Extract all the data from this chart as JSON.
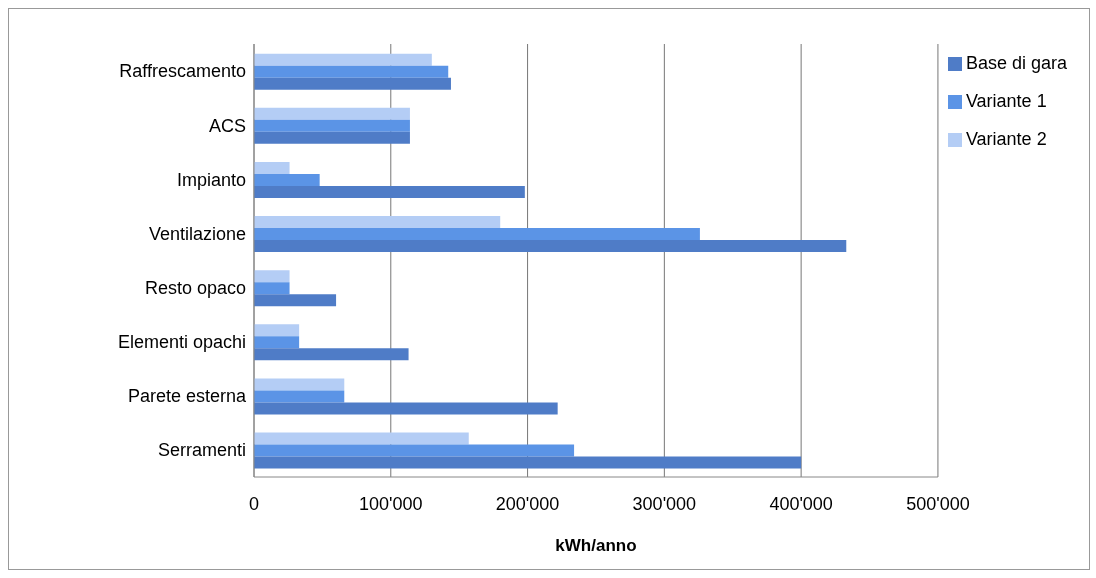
{
  "chart_data": {
    "type": "bar",
    "orientation": "horizontal",
    "xlabel": "kWh/anno",
    "categories": [
      "Raffrescamento",
      "ACS",
      "Impianto",
      "Ventilazione",
      "Resto opaco",
      "Elementi opachi",
      "Parete esterna",
      "Serramenti"
    ],
    "series": [
      {
        "name": "Variante 2",
        "color": "#b4cdf5",
        "values": [
          130000,
          114000,
          26000,
          180000,
          26000,
          33000,
          66000,
          157000
        ]
      },
      {
        "name": "Variante 1",
        "color": "#5b94e6",
        "values": [
          142000,
          114000,
          48000,
          326000,
          26000,
          33000,
          66000,
          234000
        ]
      },
      {
        "name": "Base di gara",
        "color": "#4f7cc7",
        "values": [
          144000,
          114000,
          198000,
          433000,
          60000,
          113000,
          222000,
          400000
        ]
      }
    ],
    "xlim": [
      0,
      500000
    ],
    "xticks": [
      0,
      {
        "value": 100000,
        "label": "100'000"
      },
      {
        "value": 200000,
        "label": "200'000"
      },
      {
        "value": 300000,
        "label": "300'000"
      },
      {
        "value": 400000,
        "label": "400'000"
      },
      {
        "value": 500000,
        "label": "500'000"
      }
    ],
    "grid": "x",
    "legend": "top right"
  }
}
